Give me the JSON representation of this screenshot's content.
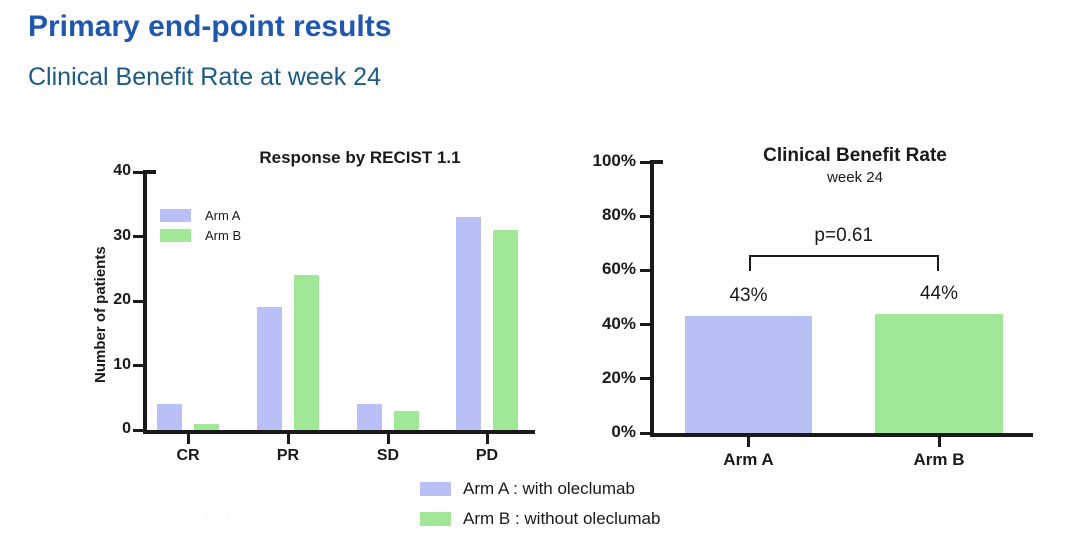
{
  "page": {
    "title": "Primary end-point results",
    "subtitle": "Clinical Benefit Rate at week 24"
  },
  "colors": {
    "arm_a": "#b8c0f6",
    "arm_b": "#a0e898",
    "title_blue": "#2058b0",
    "subtitle_blue": "#1b5b86",
    "axis_black": "#1a1a1a"
  },
  "chart_data": [
    {
      "type": "bar",
      "title": "Response by RECIST 1.1",
      "xlabel": "",
      "ylabel": "Number of patients",
      "categories": [
        "CR",
        "PR",
        "SD",
        "PD"
      ],
      "series": [
        {
          "name": "Arm A",
          "color": "#b8c0f6",
          "values": [
            4,
            19,
            4,
            33
          ]
        },
        {
          "name": "Arm B",
          "color": "#a0e898",
          "values": [
            1,
            24,
            3,
            31
          ]
        }
      ],
      "ylim": [
        0,
        40
      ],
      "yticks": [
        0,
        10,
        20,
        30,
        40
      ],
      "grid": false,
      "legend_position": "inside-top-left"
    },
    {
      "type": "bar",
      "title": "Clinical Benefit Rate",
      "subtitle": "week 24",
      "xlabel": "",
      "ylabel": "",
      "categories": [
        "Arm A",
        "Arm B"
      ],
      "values": [
        43,
        44
      ],
      "value_labels": [
        "43%",
        "44%"
      ],
      "bar_colors": [
        "#b8c0f6",
        "#a0e898"
      ],
      "ylim": [
        0,
        100
      ],
      "yticks": [
        0,
        20,
        40,
        60,
        80,
        100
      ],
      "ytick_labels": [
        "0%",
        "20%",
        "40%",
        "60%",
        "80%",
        "100%"
      ],
      "grid": false,
      "annotation": {
        "text": "p=0.61",
        "between": [
          "Arm A",
          "Arm B"
        ]
      }
    }
  ],
  "legend": [
    {
      "label": "Arm A : with oleclumab",
      "color": "#b8c0f6"
    },
    {
      "label": "Arm B : without oleclumab",
      "color": "#a0e898"
    }
  ],
  "footer": {
    "marks": "· · · · · · · ·"
  }
}
